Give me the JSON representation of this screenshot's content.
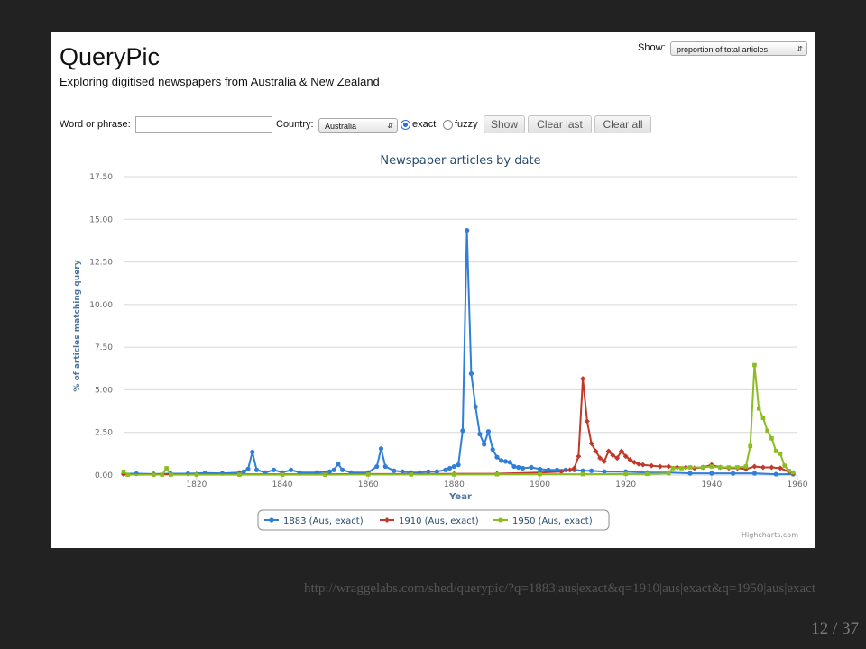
{
  "app": {
    "title": "QueryPic",
    "subtitle": "Exploring digitised newspapers from Australia & New Zealand"
  },
  "controls": {
    "show_label": "Show:",
    "show_value": "proportion of total articles",
    "phrase_label": "Word or phrase:",
    "phrase_value": "",
    "country_label": "Country:",
    "country_value": "Australia",
    "exact_label": "exact",
    "fuzzy_label": "fuzzy",
    "show_button": "Show",
    "clear_last_button": "Clear last",
    "clear_all_button": "Clear all"
  },
  "footer": {
    "url": "http://wraggelabs.com/shed/querypic/?q=1883|aus|exact&q=1910|aus|exact&q=1950|aus|exact",
    "page": "12 / 37"
  },
  "chart_data": {
    "type": "line",
    "title": "Newspaper articles by date",
    "xlabel": "Year",
    "ylabel": "% of articles matching query",
    "xlim": [
      1803,
      1960
    ],
    "ylim": [
      0,
      17.5
    ],
    "x_ticks": [
      "1820",
      "1840",
      "1860",
      "1880",
      "1900",
      "1920",
      "1940",
      "1960"
    ],
    "y_ticks": [
      "0.00",
      "2.50",
      "5.00",
      "7.50",
      "10.00",
      "12.50",
      "15.00",
      "17.50"
    ],
    "grid": true,
    "legend_position": "bottom-center",
    "credits": "Highcharts.com",
    "series": [
      {
        "name": "1883 (Aus, exact)",
        "color": "#2f7ed8",
        "marker": "circle",
        "points": [
          [
            1803,
            0.08
          ],
          [
            1806,
            0.08
          ],
          [
            1810,
            0.06
          ],
          [
            1814,
            0.08
          ],
          [
            1818,
            0.08
          ],
          [
            1822,
            0.12
          ],
          [
            1826,
            0.1
          ],
          [
            1830,
            0.15
          ],
          [
            1831,
            0.2
          ],
          [
            1832,
            0.35
          ],
          [
            1833,
            1.35
          ],
          [
            1834,
            0.3
          ],
          [
            1836,
            0.15
          ],
          [
            1838,
            0.3
          ],
          [
            1840,
            0.15
          ],
          [
            1842,
            0.3
          ],
          [
            1844,
            0.15
          ],
          [
            1848,
            0.15
          ],
          [
            1851,
            0.2
          ],
          [
            1852,
            0.3
          ],
          [
            1853,
            0.65
          ],
          [
            1854,
            0.3
          ],
          [
            1856,
            0.15
          ],
          [
            1860,
            0.15
          ],
          [
            1862,
            0.5
          ],
          [
            1863,
            1.55
          ],
          [
            1864,
            0.5
          ],
          [
            1866,
            0.25
          ],
          [
            1868,
            0.2
          ],
          [
            1870,
            0.15
          ],
          [
            1872,
            0.15
          ],
          [
            1874,
            0.2
          ],
          [
            1876,
            0.2
          ],
          [
            1878,
            0.3
          ],
          [
            1879,
            0.4
          ],
          [
            1880,
            0.5
          ],
          [
            1881,
            0.6
          ],
          [
            1882,
            2.6
          ],
          [
            1883,
            14.35
          ],
          [
            1884,
            5.95
          ],
          [
            1885,
            4.0
          ],
          [
            1886,
            2.4
          ],
          [
            1887,
            1.8
          ],
          [
            1888,
            2.55
          ],
          [
            1889,
            1.5
          ],
          [
            1890,
            1.05
          ],
          [
            1891,
            0.85
          ],
          [
            1892,
            0.8
          ],
          [
            1893,
            0.75
          ],
          [
            1894,
            0.5
          ],
          [
            1895,
            0.45
          ],
          [
            1896,
            0.4
          ],
          [
            1898,
            0.45
          ],
          [
            1900,
            0.35
          ],
          [
            1902,
            0.3
          ],
          [
            1904,
            0.3
          ],
          [
            1906,
            0.3
          ],
          [
            1908,
            0.3
          ],
          [
            1910,
            0.25
          ],
          [
            1912,
            0.25
          ],
          [
            1915,
            0.2
          ],
          [
            1920,
            0.2
          ],
          [
            1925,
            0.15
          ],
          [
            1930,
            0.15
          ],
          [
            1935,
            0.1
          ],
          [
            1940,
            0.1
          ],
          [
            1945,
            0.1
          ],
          [
            1950,
            0.1
          ],
          [
            1955,
            0.05
          ],
          [
            1959,
            0.05
          ]
        ]
      },
      {
        "name": "1910 (Aus, exact)",
        "color": "#c0392b",
        "marker": "diamond",
        "points": [
          [
            1803,
            0.05
          ],
          [
            1810,
            0.05
          ],
          [
            1820,
            0.05
          ],
          [
            1830,
            0.05
          ],
          [
            1840,
            0.05
          ],
          [
            1850,
            0.05
          ],
          [
            1860,
            0.06
          ],
          [
            1870,
            0.06
          ],
          [
            1880,
            0.07
          ],
          [
            1890,
            0.08
          ],
          [
            1900,
            0.15
          ],
          [
            1905,
            0.2
          ],
          [
            1907,
            0.3
          ],
          [
            1908,
            0.4
          ],
          [
            1909,
            1.1
          ],
          [
            1910,
            5.65
          ],
          [
            1911,
            3.15
          ],
          [
            1912,
            1.85
          ],
          [
            1913,
            1.4
          ],
          [
            1914,
            1.0
          ],
          [
            1915,
            0.8
          ],
          [
            1916,
            1.4
          ],
          [
            1917,
            1.15
          ],
          [
            1918,
            1.0
          ],
          [
            1919,
            1.4
          ],
          [
            1920,
            1.1
          ],
          [
            1921,
            0.9
          ],
          [
            1922,
            0.75
          ],
          [
            1923,
            0.65
          ],
          [
            1924,
            0.6
          ],
          [
            1926,
            0.55
          ],
          [
            1928,
            0.5
          ],
          [
            1930,
            0.5
          ],
          [
            1932,
            0.45
          ],
          [
            1934,
            0.45
          ],
          [
            1936,
            0.4
          ],
          [
            1938,
            0.45
          ],
          [
            1940,
            0.6
          ],
          [
            1942,
            0.45
          ],
          [
            1944,
            0.4
          ],
          [
            1946,
            0.4
          ],
          [
            1948,
            0.35
          ],
          [
            1950,
            0.5
          ],
          [
            1952,
            0.45
          ],
          [
            1954,
            0.45
          ],
          [
            1956,
            0.4
          ],
          [
            1958,
            0.2
          ],
          [
            1959,
            0.1
          ]
        ]
      },
      {
        "name": "1950 (Aus, exact)",
        "color": "#8bbc21",
        "marker": "square",
        "points": [
          [
            1803,
            0.2
          ],
          [
            1804,
            0.02
          ],
          [
            1810,
            0.02
          ],
          [
            1812,
            0.02
          ],
          [
            1813,
            0.4
          ],
          [
            1814,
            0.02
          ],
          [
            1820,
            0.02
          ],
          [
            1830,
            0.02
          ],
          [
            1840,
            0.02
          ],
          [
            1850,
            0.02
          ],
          [
            1860,
            0.03
          ],
          [
            1870,
            0.03
          ],
          [
            1880,
            0.03
          ],
          [
            1890,
            0.04
          ],
          [
            1900,
            0.05
          ],
          [
            1910,
            0.05
          ],
          [
            1920,
            0.06
          ],
          [
            1925,
            0.06
          ],
          [
            1930,
            0.1
          ],
          [
            1931,
            0.4
          ],
          [
            1933,
            0.4
          ],
          [
            1935,
            0.45
          ],
          [
            1938,
            0.45
          ],
          [
            1940,
            0.5
          ],
          [
            1942,
            0.45
          ],
          [
            1944,
            0.45
          ],
          [
            1946,
            0.45
          ],
          [
            1948,
            0.5
          ],
          [
            1949,
            1.7
          ],
          [
            1950,
            6.45
          ],
          [
            1951,
            3.9
          ],
          [
            1952,
            3.35
          ],
          [
            1953,
            2.6
          ],
          [
            1954,
            2.15
          ],
          [
            1955,
            1.4
          ],
          [
            1956,
            1.25
          ],
          [
            1957,
            0.55
          ],
          [
            1958,
            0.25
          ],
          [
            1959,
            0.15
          ]
        ]
      }
    ]
  }
}
